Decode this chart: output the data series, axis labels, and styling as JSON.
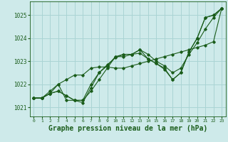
{
  "background_color": "#ceeaea",
  "grid_color": "#aad4d4",
  "line_color": "#1a5c1a",
  "xlabel": "Graphe pression niveau de la mer (hPa)",
  "xlabel_fontsize": 7.0,
  "ylim": [
    1020.6,
    1025.6
  ],
  "xlim": [
    -0.5,
    23.5
  ],
  "yticks": [
    1021,
    1022,
    1023,
    1024,
    1025
  ],
  "xticks": [
    0,
    1,
    2,
    3,
    4,
    5,
    6,
    7,
    8,
    9,
    10,
    11,
    12,
    13,
    14,
    15,
    16,
    17,
    18,
    19,
    20,
    21,
    22,
    23
  ],
  "xtick_labels": [
    "0",
    "1",
    "2",
    "3",
    "4",
    "5",
    "6",
    "7",
    "8",
    "9",
    "10",
    "11",
    "12",
    "13",
    "14",
    "15",
    "16",
    "17",
    "18",
    "19",
    "20",
    "21",
    "22",
    "23"
  ],
  "series": [
    [
      1021.4,
      1021.4,
      1021.6,
      1021.7,
      1021.5,
      1021.3,
      1021.3,
      1021.7,
      1022.2,
      1022.7,
      1023.2,
      1023.2,
      1023.3,
      1023.35,
      1023.1,
      1022.9,
      1022.7,
      1022.2,
      1022.5,
      1023.4,
      1024.0,
      1024.9,
      1025.0,
      1025.3
    ],
    [
      1021.4,
      1021.4,
      1021.6,
      1021.7,
      1021.5,
      1021.3,
      1021.3,
      1022.0,
      1022.5,
      1022.8,
      1023.2,
      1023.3,
      1023.3,
      1023.5,
      1023.3,
      1023.0,
      1022.8,
      1022.5,
      1022.7,
      1023.3,
      1023.8,
      1024.4,
      1024.9,
      1025.3
    ],
    [
      1021.4,
      1021.4,
      1021.6,
      1022.0,
      1022.2,
      1022.4,
      1022.4,
      1022.7,
      1022.75,
      1022.75,
      1022.7,
      1022.7,
      1022.8,
      1022.9,
      1023.0,
      1023.1,
      1023.2,
      1023.3,
      1023.4,
      1023.5,
      1023.6,
      1023.7,
      1023.85,
      1025.3
    ],
    [
      1021.4,
      1021.4,
      1021.7,
      1022.0,
      1021.3,
      1021.3,
      1021.2,
      1021.85,
      1022.5,
      1022.85,
      1023.15,
      1023.3,
      1023.3,
      1023.5,
      1023.1,
      1022.9,
      1022.65,
      1022.2,
      1022.5,
      1023.4,
      1024.0,
      1024.9,
      1025.0,
      1025.3
    ]
  ]
}
